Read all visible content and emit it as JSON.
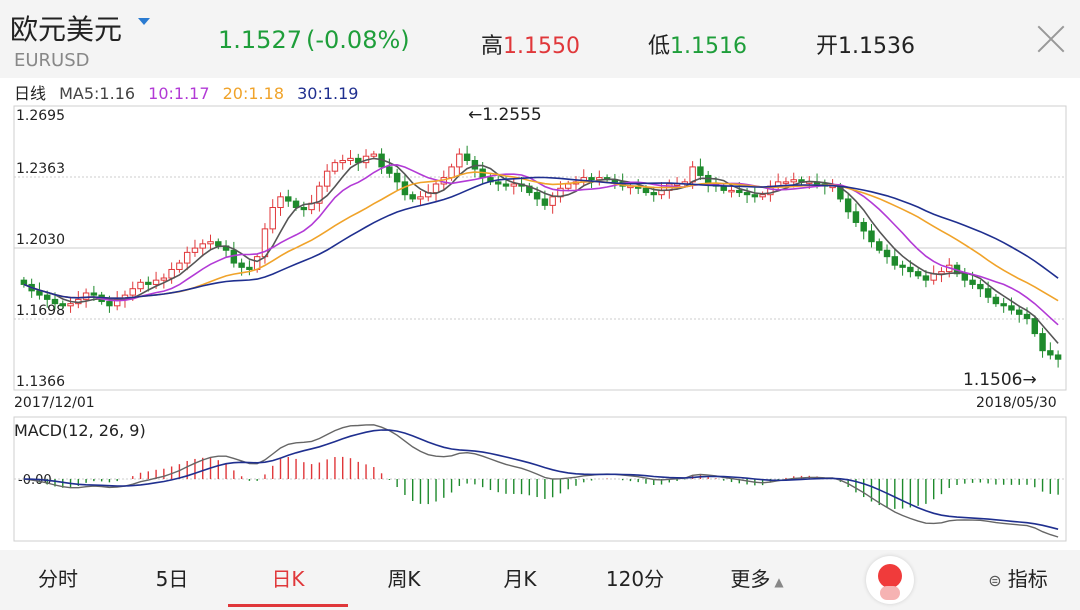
{
  "header": {
    "name": "欧元美元",
    "symbol": "EURUSD",
    "price": "1.1527",
    "change": "(-0.08%)",
    "high_label": "高",
    "high": "1.1550",
    "low_label": "低",
    "low": "1.1516",
    "open_label": "开",
    "open": "1.1536"
  },
  "legend": {
    "period": "日线",
    "ma5": "MA5:1.16",
    "ma10": "10:1.17",
    "ma20": "20:1.18",
    "ma30": "30:1.19"
  },
  "colors": {
    "up": "#e0373a",
    "down": "#1e8a2c",
    "ma5": "#555555",
    "ma10": "#b23ad6",
    "ma20": "#f0a32a",
    "ma30": "#1f2f8f"
  },
  "tabs": [
    "分时",
    "5日",
    "日K",
    "周K",
    "月K",
    "120分",
    "更多",
    "指标"
  ],
  "chart_data": [
    {
      "type": "candlestick",
      "x_start": "2017/12/01",
      "x_end": "2018/05/30",
      "y_ticks": [
        "1.2695",
        "1.2363",
        "1.2030",
        "1.1698",
        "1.1366"
      ],
      "ylim": [
        1.1366,
        1.2695
      ],
      "annotation_high": "←1.2555",
      "annotation_low": "1.1506→",
      "closes": [
        1.186,
        1.183,
        1.181,
        1.179,
        1.177,
        1.176,
        1.177,
        1.179,
        1.182,
        1.181,
        1.178,
        1.176,
        1.179,
        1.181,
        1.184,
        1.187,
        1.186,
        1.188,
        1.189,
        1.193,
        1.196,
        1.201,
        1.203,
        1.205,
        1.206,
        1.204,
        1.202,
        1.196,
        1.194,
        1.193,
        1.199,
        1.212,
        1.222,
        1.227,
        1.225,
        1.222,
        1.221,
        1.224,
        1.232,
        1.239,
        1.243,
        1.244,
        1.245,
        1.243,
        1.246,
        1.247,
        1.241,
        1.238,
        1.234,
        1.228,
        1.226,
        1.227,
        1.229,
        1.233,
        1.236,
        1.241,
        1.247,
        1.244,
        1.24,
        1.236,
        1.234,
        1.233,
        1.232,
        1.233,
        1.232,
        1.229,
        1.226,
        1.223,
        1.227,
        1.231,
        1.233,
        1.234,
        1.236,
        1.235,
        1.236,
        1.235,
        1.234,
        1.232,
        1.232,
        1.231,
        1.229,
        1.228,
        1.23,
        1.233,
        1.233,
        1.234,
        1.241,
        1.237,
        1.233,
        1.232,
        1.23,
        1.23,
        1.229,
        1.228,
        1.227,
        1.228,
        1.232,
        1.234,
        1.234,
        1.235,
        1.234,
        1.234,
        1.233,
        1.232,
        1.232,
        1.226,
        1.22,
        1.215,
        1.211,
        1.206,
        1.202,
        1.199,
        1.195,
        1.194,
        1.192,
        1.19,
        1.188,
        1.191,
        1.192,
        1.195,
        1.191,
        1.188,
        1.186,
        1.184,
        1.18,
        1.177,
        1.176,
        1.174,
        1.172,
        1.17,
        1.163,
        1.155,
        1.153,
        1.151
      ],
      "ma5": 1.16,
      "ma10": 1.17,
      "ma20": 1.18,
      "ma30": 1.19
    },
    {
      "type": "macd",
      "title": "MACD(12, 26, 9)",
      "zero_label": "-0.00"
    }
  ]
}
